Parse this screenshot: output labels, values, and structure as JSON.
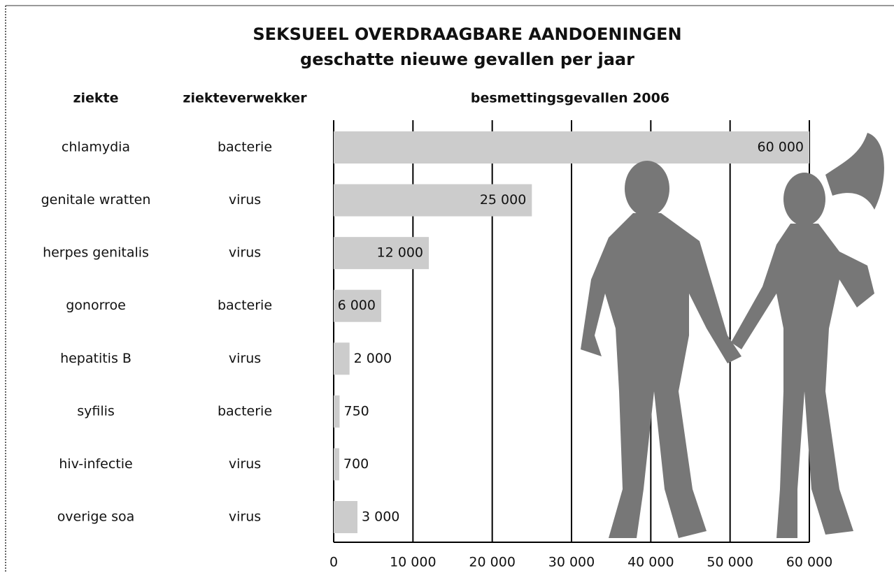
{
  "chart_data": {
    "type": "bar",
    "orientation": "horizontal",
    "title": "SEKSUEEL OVERDRAAGBARE AANDOENINGEN",
    "subtitle": "geschatte nieuwe gevallen per jaar",
    "column_headers": [
      "ziekte",
      "ziekteverwekker",
      "besmettingsgevallen 2006"
    ],
    "categories": [
      "chlamydia",
      "genitale wratten",
      "herpes genitalis",
      "gonorroe",
      "hepatitis B",
      "syfilis",
      "hiv-infectie",
      "overige soa"
    ],
    "pathogens": [
      "bacterie",
      "virus",
      "virus",
      "bacterie",
      "virus",
      "bacterie",
      "virus",
      "virus"
    ],
    "values": [
      60000,
      25000,
      12000,
      6000,
      2000,
      750,
      700,
      3000
    ],
    "value_labels": [
      "60 000",
      "25 000",
      "12 000",
      "6 000",
      "2 000",
      "750",
      "700",
      "3 000"
    ],
    "color": "#cccccc",
    "xlim": [
      0,
      60000
    ],
    "xticks": [
      0,
      {
        "value": 10000,
        "label": "10 000"
      },
      {
        "value": 20000,
        "label": "20 000"
      },
      {
        "value": 30000,
        "label": "30 000"
      },
      {
        "value": 40000,
        "label": "40 000"
      },
      {
        "value": 50000,
        "label": "50 000"
      },
      {
        "value": 60000,
        "label": "60 000"
      }
    ],
    "grid": true
  }
}
